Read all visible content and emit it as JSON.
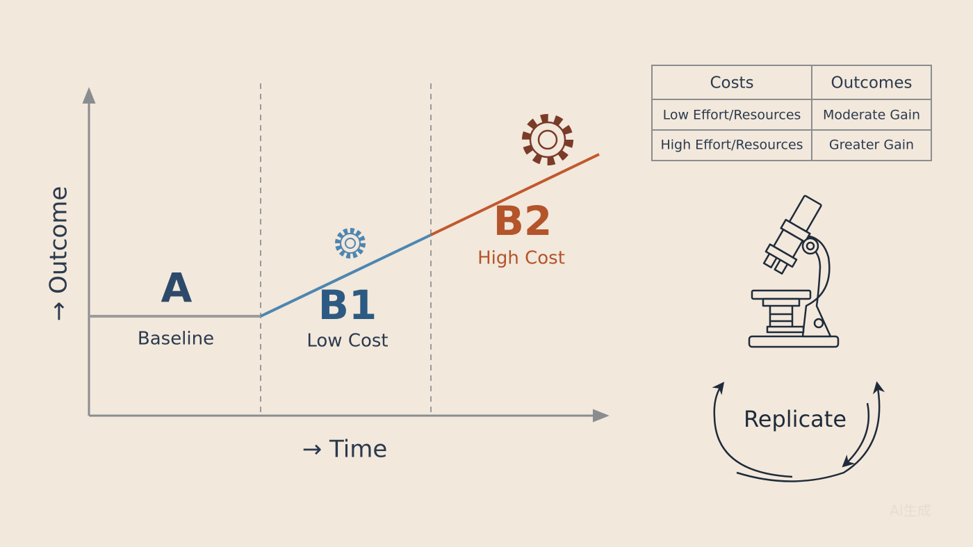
{
  "axes": {
    "y_label": "→ Outcome",
    "x_label": "→ Time"
  },
  "phases": [
    {
      "letter": "A",
      "label": "Baseline"
    },
    {
      "letter": "B1",
      "label": "Low Cost"
    },
    {
      "letter": "B2",
      "label": "High Cost"
    }
  ],
  "table": {
    "header": [
      "Costs",
      "Outcomes"
    ],
    "rows": [
      [
        "Low Effort/Resources",
        "Moderate Gain"
      ],
      [
        "High Effort/Resources",
        "Greater Gain"
      ]
    ]
  },
  "cycle": {
    "label": "Replicate"
  },
  "watermark": "AI生成"
}
